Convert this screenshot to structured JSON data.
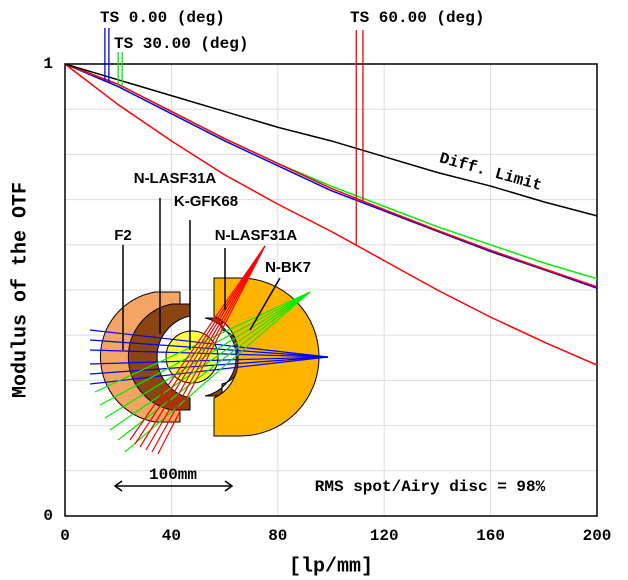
{
  "chart_data": {
    "type": "line",
    "x_label": "[lp/mm]",
    "y_label": "Modulus of the OTF",
    "x": [
      0,
      20,
      40,
      60,
      80,
      100,
      120,
      140,
      160,
      180,
      200
    ],
    "xlim": [
      0,
      200
    ],
    "xticks": [
      0,
      40,
      80,
      120,
      160,
      200
    ],
    "ylim": [
      0,
      1
    ],
    "yticks": [
      0,
      1
    ],
    "ygrid": [
      0.1,
      0.2,
      0.3,
      0.4,
      0.5,
      0.6,
      0.7,
      0.8,
      0.9
    ],
    "grid": true,
    "series": [
      {
        "name": "TS 0.00 (deg)",
        "color": "#0000ff",
        "values": [
          1,
          0.95,
          0.89,
          0.83,
          0.775,
          0.72,
          0.675,
          0.63,
          0.585,
          0.545,
          0.504
        ]
      },
      {
        "name": "TS 30.00 (deg)",
        "color": "#00ee00",
        "values": [
          1,
          0.955,
          0.895,
          0.835,
          0.78,
          0.73,
          0.685,
          0.64,
          0.6,
          0.56,
          0.525
        ]
      },
      {
        "name": "TS 60.00 (deg)",
        "color": "#ff0000",
        "values": [
          1,
          0.955,
          0.895,
          0.835,
          0.78,
          0.725,
          0.678,
          0.632,
          0.588,
          0.547,
          0.507
        ]
      },
      {
        "color": "#ff0000",
        "values": [
          1,
          0.91,
          0.83,
          0.755,
          0.69,
          0.63,
          0.565,
          0.5,
          0.44,
          0.385,
          0.334
        ]
      },
      {
        "name": "Diff. Limit",
        "color": "#000000",
        "values": [
          1,
          0.965,
          0.93,
          0.895,
          0.86,
          0.83,
          0.795,
          0.76,
          0.73,
          0.695,
          0.664
        ]
      }
    ],
    "annotations": {
      "rms": "RMS spot/Airy disc = 98%",
      "scale": "100mm"
    },
    "lenses": [
      "F2",
      "N-LASF31A",
      "K-GFK68",
      "N-LASF31A",
      "N-BK7"
    ]
  }
}
